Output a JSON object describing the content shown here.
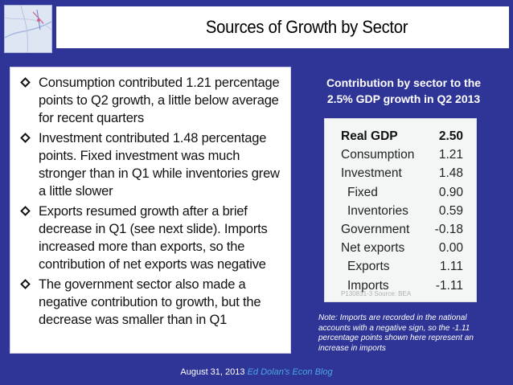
{
  "title": "Sources of Growth by Sector",
  "bullets": [
    {
      "lines": [
        "Consumption contributed 1.21 percentage",
        "points to Q2 growth, a little below average",
        "for recent quarters"
      ]
    },
    {
      "lines": [
        "Investment contributed 1.48 percentage",
        "points. Fixed investment was much",
        "stronger than in Q1 while inventories grew",
        "a little slower"
      ]
    },
    {
      "lines": [
        "Exports resumed growth after a brief",
        "decrease in Q1 (see next slide). Imports",
        "increased more than exports, so the",
        "contribution of net exports was negative"
      ]
    },
    {
      "lines": [
        "The government sector also made a",
        "negative contribution to growth, but the",
        "decrease was smaller than in Q1"
      ]
    }
  ],
  "table_caption": {
    "line1": "Contribution by sector to the",
    "line2": "2.5% GDP growth in Q2 2013"
  },
  "chart_data": {
    "type": "table",
    "rows": [
      {
        "label": "Real GDP",
        "value": "2.50",
        "bold": true,
        "indent": 0
      },
      {
        "label": "Consumption",
        "value": "1.21",
        "bold": false,
        "indent": 0
      },
      {
        "label": "Investment",
        "value": "1.48",
        "bold": false,
        "indent": 0
      },
      {
        "label": "Fixed",
        "value": "0.90",
        "bold": false,
        "indent": 1
      },
      {
        "label": "Inventories",
        "value": "0.59",
        "bold": false,
        "indent": 1
      },
      {
        "label": "Government",
        "value": "-0.18",
        "bold": false,
        "indent": 0
      },
      {
        "label": "Net exports",
        "value": "0.00",
        "bold": false,
        "indent": 0
      },
      {
        "label": "Exports",
        "value": "1.11",
        "bold": false,
        "indent": 1
      },
      {
        "label": "Imports",
        "value": "-1.11",
        "bold": false,
        "indent": 1
      }
    ],
    "source": "P130831-3 Source: BEA"
  },
  "note": {
    "line1": "Note: Imports are recorded in the national",
    "line2": "accounts with a negative sign, so the -1.11",
    "line3": "percentage points shown here represent an",
    "line4": "increase in imports"
  },
  "footer": {
    "date": "August 31, 2013",
    "blog": "Ed Dolan's Econ Blog"
  },
  "colors": {
    "background": "#2f3596",
    "blog_link": "#4aa6e0"
  },
  "icons": {
    "bullet": "diamond-bullet-icon",
    "thumbnail": "abstract-map-thumbnail"
  }
}
